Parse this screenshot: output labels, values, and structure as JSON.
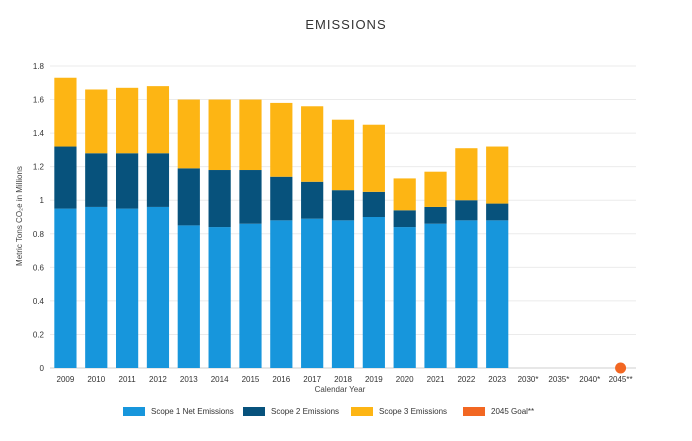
{
  "chart_data": {
    "type": "bar",
    "stacked": true,
    "title": "EMISSIONS",
    "xlabel": "Calendar Year",
    "ylabel": "Metric Tons CO₂e in Millions",
    "ylim": [
      0,
      1.8
    ],
    "yticks": [
      "0",
      "0.2",
      "0.4",
      "0.6",
      "0.8",
      "1",
      "1.2",
      "1.4",
      "1.6",
      "1.8"
    ],
    "ytick_values": [
      0,
      0.2,
      0.4,
      0.6,
      0.8,
      1.0,
      1.2,
      1.4,
      1.6,
      1.8
    ],
    "grid": true,
    "legend_position": "bottom",
    "categories": [
      "2009",
      "2010",
      "2011",
      "2012",
      "2013",
      "2014",
      "2015",
      "2016",
      "2017",
      "2018",
      "2019",
      "2020",
      "2021",
      "2022",
      "2023",
      "2030*",
      "2035*",
      "2040*",
      "2045**"
    ],
    "series": [
      {
        "name": "Scope 1 Net Emissions",
        "color": "#1796dc",
        "values": [
          0.95,
          0.96,
          0.95,
          0.96,
          0.85,
          0.84,
          0.86,
          0.88,
          0.89,
          0.88,
          0.9,
          0.84,
          0.86,
          0.88,
          0.88,
          null,
          null,
          null,
          null
        ]
      },
      {
        "name": "Scope 2 Emissions",
        "color": "#07527c",
        "values": [
          0.37,
          0.32,
          0.33,
          0.32,
          0.34,
          0.34,
          0.32,
          0.26,
          0.22,
          0.18,
          0.15,
          0.1,
          0.1,
          0.12,
          0.1,
          null,
          null,
          null,
          null
        ]
      },
      {
        "name": "Scope 3 Emissions",
        "color": "#fdb514",
        "values": [
          0.41,
          0.38,
          0.39,
          0.4,
          0.41,
          0.42,
          0.42,
          0.44,
          0.45,
          0.42,
          0.4,
          0.19,
          0.21,
          0.31,
          0.34,
          null,
          null,
          null,
          null
        ]
      }
    ],
    "goal": {
      "name": "2045 Goal**",
      "color": "#f26722",
      "category": "2045**",
      "value": 0
    }
  }
}
